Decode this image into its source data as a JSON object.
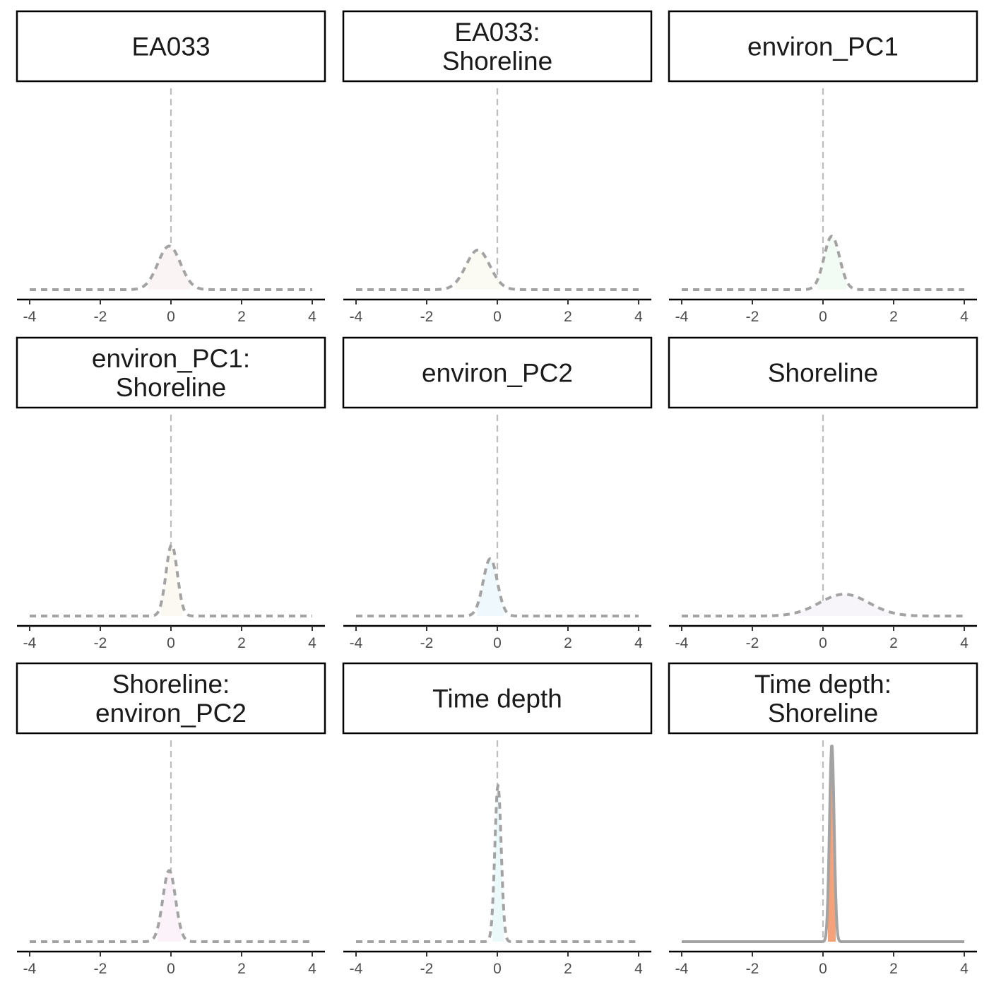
{
  "chart_data": {
    "type": "area",
    "layout": "facet-grid-3x3",
    "title": "",
    "xlabel": "",
    "ylabel": "",
    "xlim": [
      -4,
      4
    ],
    "x_ticks": [
      -4,
      -2,
      0,
      2,
      4
    ],
    "x_tick_labels": [
      "-4",
      "-2",
      "0",
      "2",
      "4"
    ],
    "reference_line_x": 0,
    "y_axis_shown": false,
    "grid": false,
    "facets": [
      {
        "label": [
          "EA033"
        ],
        "mean": -0.05,
        "sd": 0.32,
        "peak_rel": 0.22,
        "fill": "#fbf4f5",
        "line": "dashed"
      },
      {
        "label": [
          "EA033:",
          "Shoreline"
        ],
        "mean": -0.55,
        "sd": 0.34,
        "peak_rel": 0.2,
        "fill": "#fcfbf3",
        "line": "dashed"
      },
      {
        "label": [
          "environ_PC1"
        ],
        "mean": 0.25,
        "sd": 0.22,
        "peak_rel": 0.27,
        "fill": "#f2fbf4",
        "line": "dashed"
      },
      {
        "label": [
          "environ_PC1:",
          "Shoreline"
        ],
        "mean": 0.02,
        "sd": 0.16,
        "peak_rel": 0.36,
        "fill": "#fcf8f2",
        "line": "dashed"
      },
      {
        "label": [
          "environ_PC2"
        ],
        "mean": -0.2,
        "sd": 0.2,
        "peak_rel": 0.29,
        "fill": "#eff8fc",
        "line": "dashed"
      },
      {
        "label": [
          "Shoreline"
        ],
        "mean": 0.6,
        "sd": 0.7,
        "peak_rel": 0.11,
        "fill": "#f7f5f9",
        "line": "dashed"
      },
      {
        "label": [
          "Shoreline:",
          "environ_PC2"
        ],
        "mean": -0.05,
        "sd": 0.18,
        "peak_rel": 0.36,
        "fill": "#fbf3f9",
        "line": "dashed"
      },
      {
        "label": [
          "Time depth"
        ],
        "mean": 0.02,
        "sd": 0.09,
        "peak_rel": 0.79,
        "fill": "#ebf9fb",
        "line": "dashed"
      },
      {
        "label": [
          "Time depth:",
          "Shoreline"
        ],
        "mean": 0.25,
        "sd": 0.065,
        "peak_rel": 1.0,
        "fill": "#f5a27b",
        "line": "solid"
      }
    ]
  }
}
